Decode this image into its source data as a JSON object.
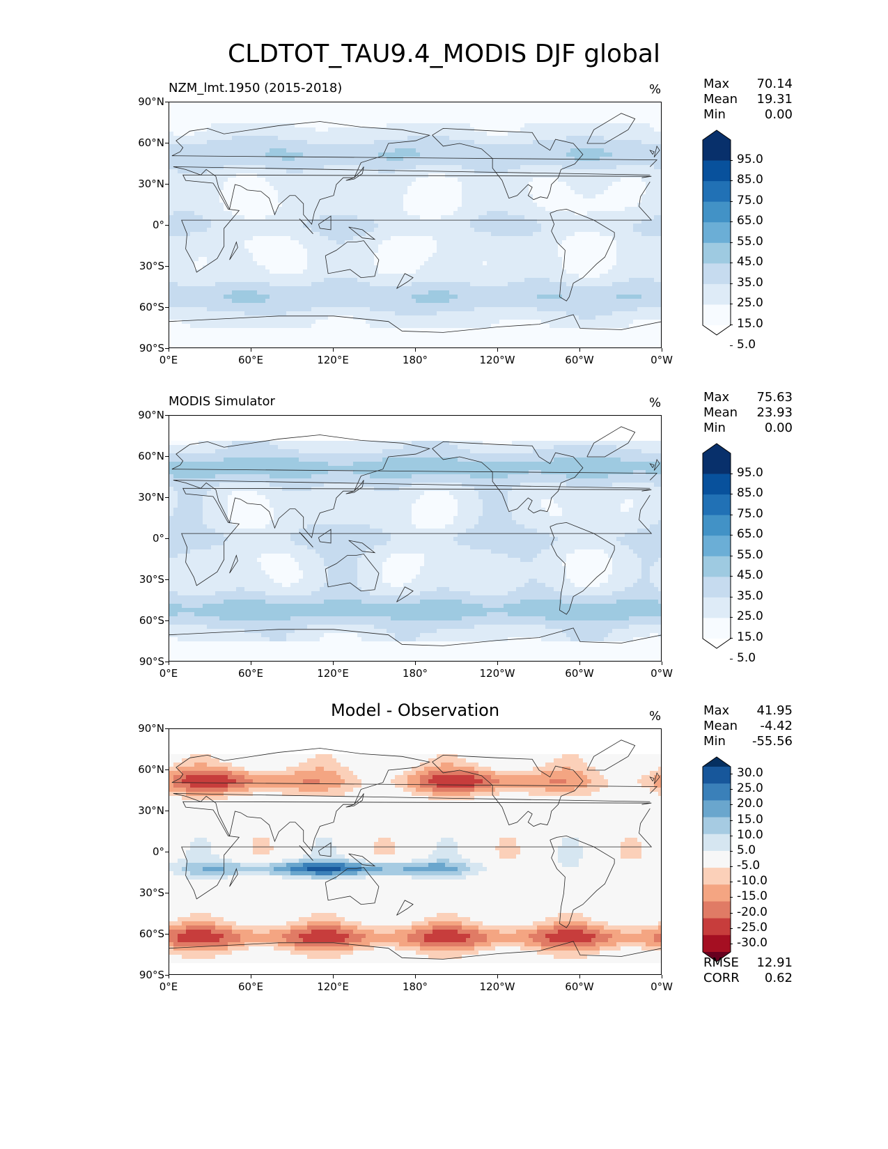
{
  "title": "CLDTOT_TAU9.4_MODIS DJF global",
  "chart_data": [
    {
      "type": "heatmap",
      "title": "NZM_lmt.1950 (2015-2018)",
      "units": "%",
      "lat_ticks": [
        "90°N",
        "60°N",
        "30°N",
        "0°",
        "30°S",
        "60°S",
        "90°S"
      ],
      "lon_ticks": [
        "0°E",
        "60°E",
        "120°E",
        "180°",
        "120°W",
        "60°W",
        "0°W"
      ],
      "stats": {
        "max_label": "Max",
        "max": "70.14",
        "mean_label": "Mean",
        "mean": "19.31",
        "min_label": "Min",
        "min": "0.00"
      },
      "colorbar_levels": [
        "95.0",
        "85.0",
        "75.0",
        "65.0",
        "55.0",
        "45.0",
        "35.0",
        "25.0",
        "15.0",
        "5.0"
      ],
      "colorbar_colors": [
        "#f7fbff",
        "#deebf7",
        "#c6dbef",
        "#9ecae1",
        "#6baed6",
        "#4292c6",
        "#2171b5",
        "#08519c",
        "#08306b"
      ],
      "colorbar_extend_colors": {
        "low": "#ffffff",
        "high": "#08306b"
      }
    },
    {
      "type": "heatmap",
      "title": "MODIS Simulator",
      "units": "%",
      "lat_ticks": [
        "90°N",
        "60°N",
        "30°N",
        "0°",
        "30°S",
        "60°S",
        "90°S"
      ],
      "lon_ticks": [
        "0°E",
        "60°E",
        "120°E",
        "180°",
        "120°W",
        "60°W",
        "0°W"
      ],
      "stats": {
        "max_label": "Max",
        "max": "75.63",
        "mean_label": "Mean",
        "mean": "23.93",
        "min_label": "Min",
        "min": "0.00"
      },
      "colorbar_levels": [
        "95.0",
        "85.0",
        "75.0",
        "65.0",
        "55.0",
        "45.0",
        "35.0",
        "25.0",
        "15.0",
        "5.0"
      ],
      "colorbar_colors": [
        "#f7fbff",
        "#deebf7",
        "#c6dbef",
        "#9ecae1",
        "#6baed6",
        "#4292c6",
        "#2171b5",
        "#08519c",
        "#08306b"
      ],
      "colorbar_extend_colors": {
        "low": "#ffffff",
        "high": "#08306b"
      }
    },
    {
      "type": "heatmap",
      "title": "Model - Observation",
      "units": "%",
      "lat_ticks": [
        "90°N",
        "60°N",
        "30°N",
        "0°",
        "30°S",
        "60°S",
        "90°S"
      ],
      "lon_ticks": [
        "0°E",
        "60°E",
        "120°E",
        "180°",
        "120°W",
        "60°W",
        "0°W"
      ],
      "stats": {
        "max_label": "Max",
        "max": "41.95",
        "mean_label": "Mean",
        "mean": "-4.42",
        "min_label": "Min",
        "min": "-55.56"
      },
      "metrics": {
        "rmse_label": "RMSE",
        "rmse": "12.91",
        "corr_label": "CORR",
        "corr": "0.62"
      },
      "colorbar_levels": [
        "30.0",
        "25.0",
        "20.0",
        "15.0",
        "10.0",
        "5.0",
        "-5.0",
        "-10.0",
        "-15.0",
        "-20.0",
        "-25.0",
        "-30.0"
      ],
      "colorbar_colors": [
        "#67001f",
        "#a50f22",
        "#c73d3c",
        "#e07b65",
        "#f4a582",
        "#fbd0b9",
        "#f7f7f7",
        "#d6e6f1",
        "#a6cbe2",
        "#6aa6cd",
        "#3a80b9",
        "#17579b",
        "#053061"
      ],
      "colorbar_extend_colors": {
        "low": "#67001f",
        "high": "#053061"
      }
    }
  ]
}
